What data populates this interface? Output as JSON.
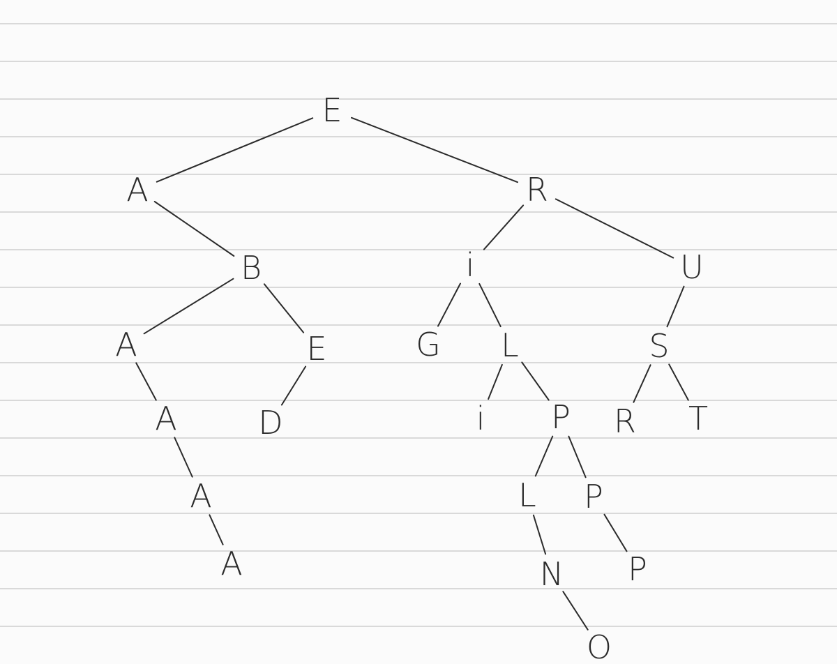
{
  "diagram": {
    "type": "tree",
    "description_text": "",
    "nodes": [
      {
        "id": "n_E_root",
        "label": "E"
      },
      {
        "id": "n_A1",
        "label": "A"
      },
      {
        "id": "n_R1",
        "label": "R"
      },
      {
        "id": "n_B",
        "label": "B"
      },
      {
        "id": "n_I1",
        "label": "i"
      },
      {
        "id": "n_U",
        "label": "U"
      },
      {
        "id": "n_A2",
        "label": "A"
      },
      {
        "id": "n_E2",
        "label": "E"
      },
      {
        "id": "n_G",
        "label": "G"
      },
      {
        "id": "n_L1",
        "label": "L"
      },
      {
        "id": "n_S",
        "label": "S"
      },
      {
        "id": "n_A3",
        "label": "A"
      },
      {
        "id": "n_D",
        "label": "D"
      },
      {
        "id": "n_I2",
        "label": "i"
      },
      {
        "id": "n_P1",
        "label": "P"
      },
      {
        "id": "n_R2",
        "label": "R"
      },
      {
        "id": "n_T",
        "label": "T"
      },
      {
        "id": "n_A4",
        "label": "A"
      },
      {
        "id": "n_L2",
        "label": "L"
      },
      {
        "id": "n_P2",
        "label": "P"
      },
      {
        "id": "n_A5",
        "label": "A"
      },
      {
        "id": "n_N",
        "label": "N"
      },
      {
        "id": "n_P3",
        "label": "P"
      },
      {
        "id": "n_O",
        "label": "O"
      }
    ],
    "edges": [
      [
        "n_E_root",
        "n_A1"
      ],
      [
        "n_E_root",
        "n_R1"
      ],
      [
        "n_A1",
        "n_B"
      ],
      [
        "n_R1",
        "n_I1"
      ],
      [
        "n_R1",
        "n_U"
      ],
      [
        "n_B",
        "n_A2"
      ],
      [
        "n_B",
        "n_E2"
      ],
      [
        "n_I1",
        "n_G"
      ],
      [
        "n_I1",
        "n_L1"
      ],
      [
        "n_U",
        "n_S"
      ],
      [
        "n_A2",
        "n_A3"
      ],
      [
        "n_E2",
        "n_D"
      ],
      [
        "n_L1",
        "n_I2"
      ],
      [
        "n_L1",
        "n_P1"
      ],
      [
        "n_S",
        "n_R2"
      ],
      [
        "n_S",
        "n_T"
      ],
      [
        "n_A3",
        "n_A4"
      ],
      [
        "n_P1",
        "n_L2"
      ],
      [
        "n_P1",
        "n_P2"
      ],
      [
        "n_A4",
        "n_A5"
      ],
      [
        "n_L2",
        "n_N"
      ],
      [
        "n_P2",
        "n_P3"
      ],
      [
        "n_N",
        "n_O"
      ]
    ]
  }
}
